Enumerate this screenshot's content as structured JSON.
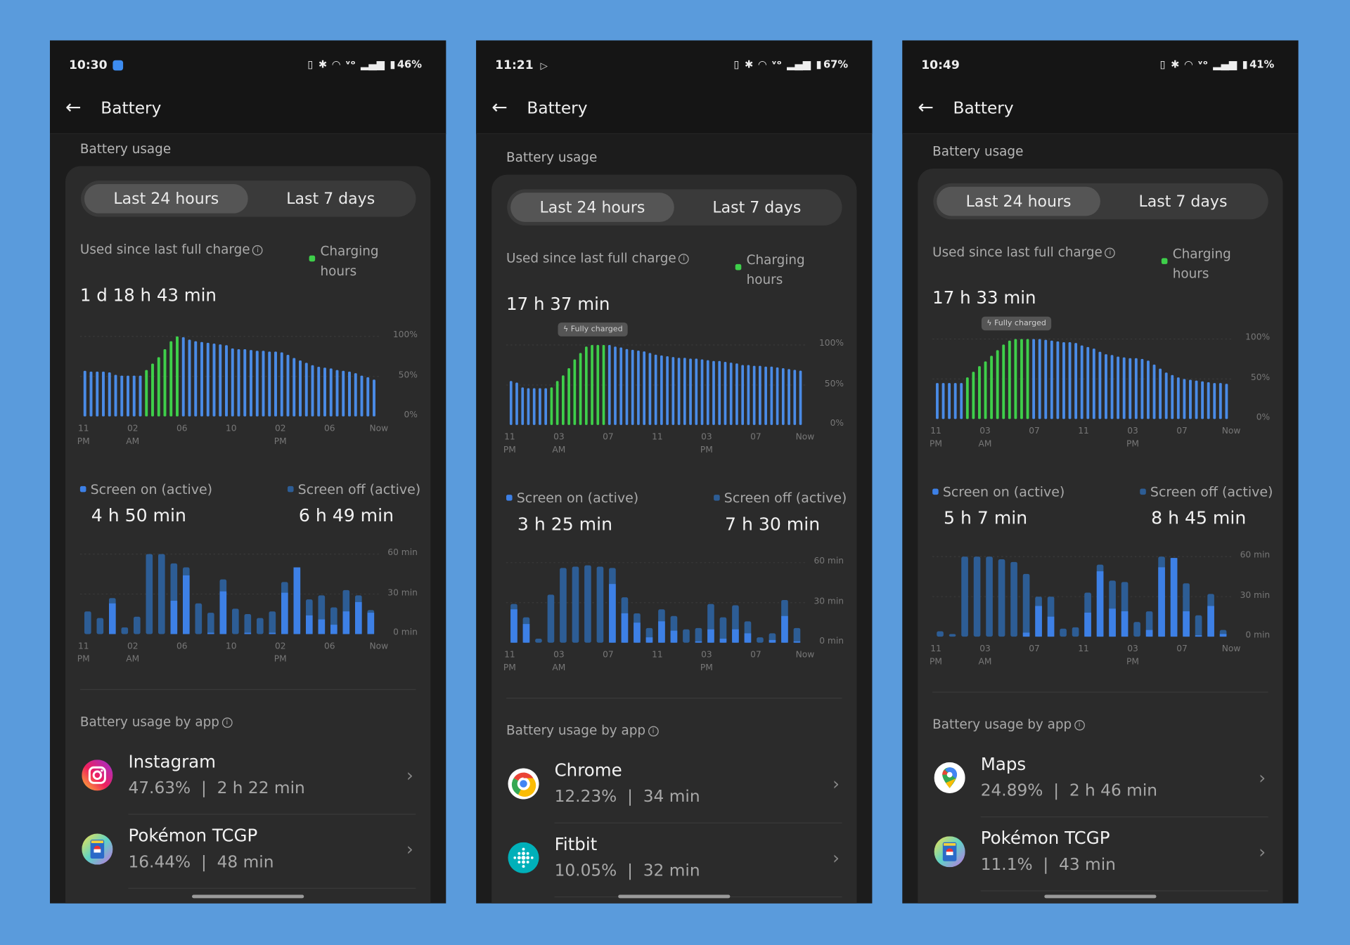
{
  "colors": {
    "page_background": "#5a9bdc",
    "screen_on": "#3d80e6",
    "screen_off": "#2d5d95",
    "charging": "#3ecf4a",
    "battery_bar": "#4a8be6"
  },
  "phones": [
    {
      "status": {
        "time": "10:30",
        "extra_icon": "app-notification-icon",
        "battery_pct": "46%",
        "icons": [
          "vibrate-icon",
          "bluetooth-icon",
          "wifi-icon",
          "volte-icon",
          "signal-icon",
          "battery-icon"
        ]
      },
      "header": {
        "title": "Battery",
        "back_icon": "back-arrow-icon"
      },
      "section_title": "Battery usage",
      "tabs": [
        {
          "label": "Last 24 hours",
          "selected": true
        },
        {
          "label": "Last 7 days",
          "selected": false
        }
      ],
      "used_label": "Used since last full charge",
      "charging_legend": "Charging hours",
      "used_value": "1 d 18 h 43 min",
      "screen_on": {
        "label": "Screen on (active)",
        "value": "4 h 50 min"
      },
      "screen_off": {
        "label": "Screen off (active)",
        "value": "6 h 49 min"
      },
      "apps_title": "Battery usage by app",
      "apps": [
        {
          "name": "Instagram",
          "stats": "47.63%  |  2 h 22 min",
          "icon": "instagram-icon"
        },
        {
          "name": "Pokémon TCGP",
          "stats": "16.44%  |  48 min",
          "icon": "pokemon-tcgp-icon"
        }
      ]
    },
    {
      "status": {
        "time": "11:21",
        "extra_icon": "play-icon",
        "battery_pct": "67%",
        "icons": [
          "vibrate-icon",
          "bluetooth-icon",
          "wifi-icon",
          "volte-icon",
          "signal-icon",
          "battery-icon"
        ]
      },
      "header": {
        "title": "Battery",
        "back_icon": "back-arrow-icon"
      },
      "section_title": "Battery usage",
      "tabs": [
        {
          "label": "Last 24 hours",
          "selected": true
        },
        {
          "label": "Last 7 days",
          "selected": false
        }
      ],
      "used_label": "Used since last full charge",
      "charging_legend": "Charging hours",
      "used_value": "17 h 37 min",
      "screen_on": {
        "label": "Screen on (active)",
        "value": "3 h 25 min"
      },
      "screen_off": {
        "label": "Screen off (active)",
        "value": "7 h 30 min"
      },
      "apps_title": "Battery usage by app",
      "apps": [
        {
          "name": "Chrome",
          "stats": "12.23%  |  34 min",
          "icon": "chrome-icon"
        },
        {
          "name": "Fitbit",
          "stats": "10.05%  |  32 min",
          "icon": "fitbit-icon"
        }
      ]
    },
    {
      "status": {
        "time": "10:49",
        "extra_icon": "",
        "battery_pct": "41%",
        "icons": [
          "vibrate-icon",
          "bluetooth-icon",
          "wifi-icon",
          "volte-icon",
          "signal-icon",
          "battery-icon"
        ]
      },
      "header": {
        "title": "Battery",
        "back_icon": "back-arrow-icon"
      },
      "section_title": "Battery usage",
      "tabs": [
        {
          "label": "Last 24 hours",
          "selected": true
        },
        {
          "label": "Last 7 days",
          "selected": false
        }
      ],
      "used_label": "Used since last full charge",
      "charging_legend": "Charging hours",
      "used_value": "17 h 33 min",
      "screen_on": {
        "label": "Screen on (active)",
        "value": "5 h 7 min"
      },
      "screen_off": {
        "label": "Screen off (active)",
        "value": "8 h 45 min"
      },
      "apps_title": "Battery usage by app",
      "apps": [
        {
          "name": "Maps",
          "stats": "24.89%  |  2 h 46 min",
          "icon": "google-maps-icon"
        },
        {
          "name": "Pokémon TCGP",
          "stats": "11.1%  |  43 min",
          "icon": "pokemon-tcgp-icon"
        }
      ]
    }
  ],
  "chart_data": [
    {
      "phone": 1,
      "type": "bar",
      "kind": "battery_level",
      "ylim": [
        0,
        100
      ],
      "y_ticks": [
        "100%",
        "50%",
        "0%"
      ],
      "x_ticks": [
        [
          "11",
          "PM"
        ],
        [
          "02",
          "AM"
        ],
        [
          "06",
          ""
        ],
        [
          "10",
          ""
        ],
        [
          "02",
          "PM"
        ],
        [
          "06",
          ""
        ],
        [
          "Now",
          ""
        ]
      ],
      "values": [
        57,
        56,
        56,
        56,
        55,
        52,
        51,
        51,
        51,
        51,
        58,
        66,
        74,
        84,
        94,
        100,
        99,
        96,
        94,
        93,
        92,
        91,
        90,
        89,
        85,
        84,
        84,
        83,
        82,
        82,
        81,
        81,
        80,
        77,
        73,
        70,
        67,
        64,
        62,
        61,
        60,
        58,
        57,
        56,
        54,
        51,
        49,
        46
      ],
      "charging_range": [
        10,
        15
      ],
      "annotation": ""
    },
    {
      "phone": 1,
      "type": "bar",
      "kind": "usage",
      "stacked": true,
      "ylim": [
        0,
        60
      ],
      "y_ticks": [
        "60 min",
        "30 min",
        "0 min"
      ],
      "x_ticks": [
        [
          "11",
          "PM"
        ],
        [
          "02",
          "AM"
        ],
        [
          "06",
          ""
        ],
        [
          "10",
          ""
        ],
        [
          "02",
          "PM"
        ],
        [
          "06",
          ""
        ],
        [
          "Now",
          ""
        ]
      ],
      "series": [
        {
          "name": "Screen on (active)",
          "values": [
            0,
            0,
            23,
            0,
            0,
            0,
            0,
            25,
            44,
            0,
            1,
            32,
            0,
            1,
            0,
            1,
            31,
            50,
            14,
            11,
            7,
            17,
            24,
            16
          ]
        },
        {
          "name": "Screen off (active)",
          "values": [
            17,
            12,
            4,
            5,
            13,
            60,
            60,
            28,
            6,
            23,
            15,
            9,
            19,
            14,
            12,
            16,
            8,
            0,
            12,
            18,
            13,
            16,
            5,
            2
          ]
        }
      ]
    },
    {
      "phone": 2,
      "type": "bar",
      "kind": "battery_level",
      "ylim": [
        0,
        100
      ],
      "y_ticks": [
        "100%",
        "50%",
        "0%"
      ],
      "x_ticks": [
        [
          "11",
          "PM"
        ],
        [
          "03",
          "AM"
        ],
        [
          "07",
          ""
        ],
        [
          "11",
          ""
        ],
        [
          "03",
          "PM"
        ],
        [
          "07",
          ""
        ],
        [
          "Now",
          ""
        ]
      ],
      "values": [
        55,
        53,
        47,
        46,
        46,
        46,
        46,
        47,
        55,
        62,
        71,
        82,
        90,
        98,
        100,
        100,
        100,
        100,
        98,
        97,
        95,
        94,
        93,
        92,
        90,
        88,
        87,
        86,
        85,
        84,
        84,
        83,
        83,
        82,
        81,
        80,
        80,
        79,
        78,
        77,
        75,
        75,
        74,
        74,
        73,
        73,
        72,
        71,
        70,
        69,
        68
      ],
      "charging_range": [
        7,
        16
      ],
      "annotation": "Fully charged"
    },
    {
      "phone": 2,
      "type": "bar",
      "kind": "usage",
      "stacked": true,
      "ylim": [
        0,
        60
      ],
      "y_ticks": [
        "60 min",
        "30 min",
        "0 min"
      ],
      "x_ticks": [
        [
          "11",
          "PM"
        ],
        [
          "03",
          "AM"
        ],
        [
          "07",
          ""
        ],
        [
          "11",
          ""
        ],
        [
          "03",
          "PM"
        ],
        [
          "07",
          ""
        ],
        [
          "Now",
          ""
        ]
      ],
      "series": [
        {
          "name": "Screen on (active)",
          "values": [
            25,
            14,
            0,
            0,
            0,
            0,
            0,
            0,
            44,
            22,
            15,
            4,
            16,
            9,
            0,
            1,
            10,
            3,
            10,
            7,
            0,
            2,
            20,
            1
          ]
        },
        {
          "name": "Screen off (active)",
          "values": [
            4,
            5,
            3,
            36,
            56,
            57,
            58,
            57,
            12,
            12,
            7,
            7,
            9,
            11,
            10,
            10,
            19,
            16,
            18,
            9,
            4,
            5,
            12,
            10
          ]
        }
      ]
    },
    {
      "phone": 3,
      "type": "bar",
      "kind": "battery_level",
      "ylim": [
        0,
        100
      ],
      "y_ticks": [
        "100%",
        "50%",
        "0%"
      ],
      "x_ticks": [
        [
          "11",
          "PM"
        ],
        [
          "03",
          "AM"
        ],
        [
          "07",
          ""
        ],
        [
          "11",
          ""
        ],
        [
          "03",
          "PM"
        ],
        [
          "07",
          ""
        ],
        [
          "Now",
          ""
        ]
      ],
      "values": [
        45,
        45,
        45,
        45,
        45,
        52,
        59,
        66,
        72,
        79,
        86,
        93,
        98,
        100,
        100,
        100,
        100,
        100,
        99,
        98,
        97,
        96,
        96,
        95,
        92,
        90,
        88,
        84,
        81,
        80,
        78,
        77,
        76,
        76,
        75,
        73,
        68,
        63,
        58,
        55,
        52,
        50,
        49,
        48,
        47,
        46,
        45,
        45,
        44
      ],
      "charging_range": [
        5,
        15
      ],
      "annotation": "Fully charged"
    },
    {
      "phone": 3,
      "type": "bar",
      "kind": "usage",
      "stacked": true,
      "ylim": [
        0,
        60
      ],
      "y_ticks": [
        "60 min",
        "30 min",
        "0 min"
      ],
      "x_ticks": [
        [
          "11",
          "PM"
        ],
        [
          "03",
          "AM"
        ],
        [
          "07",
          ""
        ],
        [
          "11",
          ""
        ],
        [
          "03",
          "PM"
        ],
        [
          "07",
          ""
        ],
        [
          "Now",
          ""
        ]
      ],
      "series": [
        {
          "name": "Screen on (active)",
          "values": [
            0,
            0,
            0,
            0,
            0,
            0,
            0,
            3,
            23,
            15,
            0,
            0,
            18,
            49,
            21,
            19,
            0,
            5,
            52,
            59,
            19,
            1,
            23,
            2
          ]
        },
        {
          "name": "Screen off (active)",
          "values": [
            4,
            2,
            60,
            60,
            60,
            58,
            56,
            44,
            7,
            15,
            6,
            7,
            15,
            5,
            21,
            22,
            11,
            14,
            8,
            0,
            21,
            15,
            9,
            3
          ]
        }
      ]
    }
  ]
}
